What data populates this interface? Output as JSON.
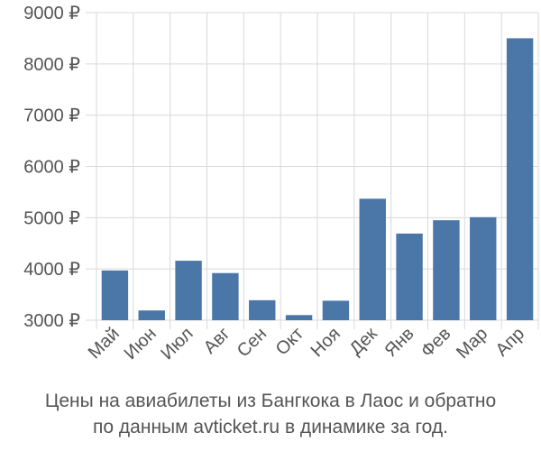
{
  "chart_data": {
    "type": "bar",
    "categories": [
      "Май",
      "Июн",
      "Июл",
      "Авг",
      "Сен",
      "Окт",
      "Ноя",
      "Дек",
      "Янв",
      "Фев",
      "Мар",
      "Апр"
    ],
    "values": [
      3970,
      3190,
      4160,
      3920,
      3390,
      3100,
      3380,
      5370,
      4690,
      4950,
      5010,
      8500
    ],
    "ylim": [
      3000,
      9000
    ],
    "yticks": [
      3000,
      4000,
      5000,
      6000,
      7000,
      8000,
      9000
    ],
    "ytick_labels": [
      "3000 ₽",
      "4000 ₽",
      "5000 ₽",
      "6000 ₽",
      "7000 ₽",
      "8000 ₽",
      "9000 ₽"
    ],
    "grid": true,
    "bar_color": "#4a76a8"
  },
  "caption": {
    "line1": "Цены на авиабилеты из Бангкока в Лаос и обратно",
    "line2": "по данным avticket.ru в динамике за год."
  }
}
